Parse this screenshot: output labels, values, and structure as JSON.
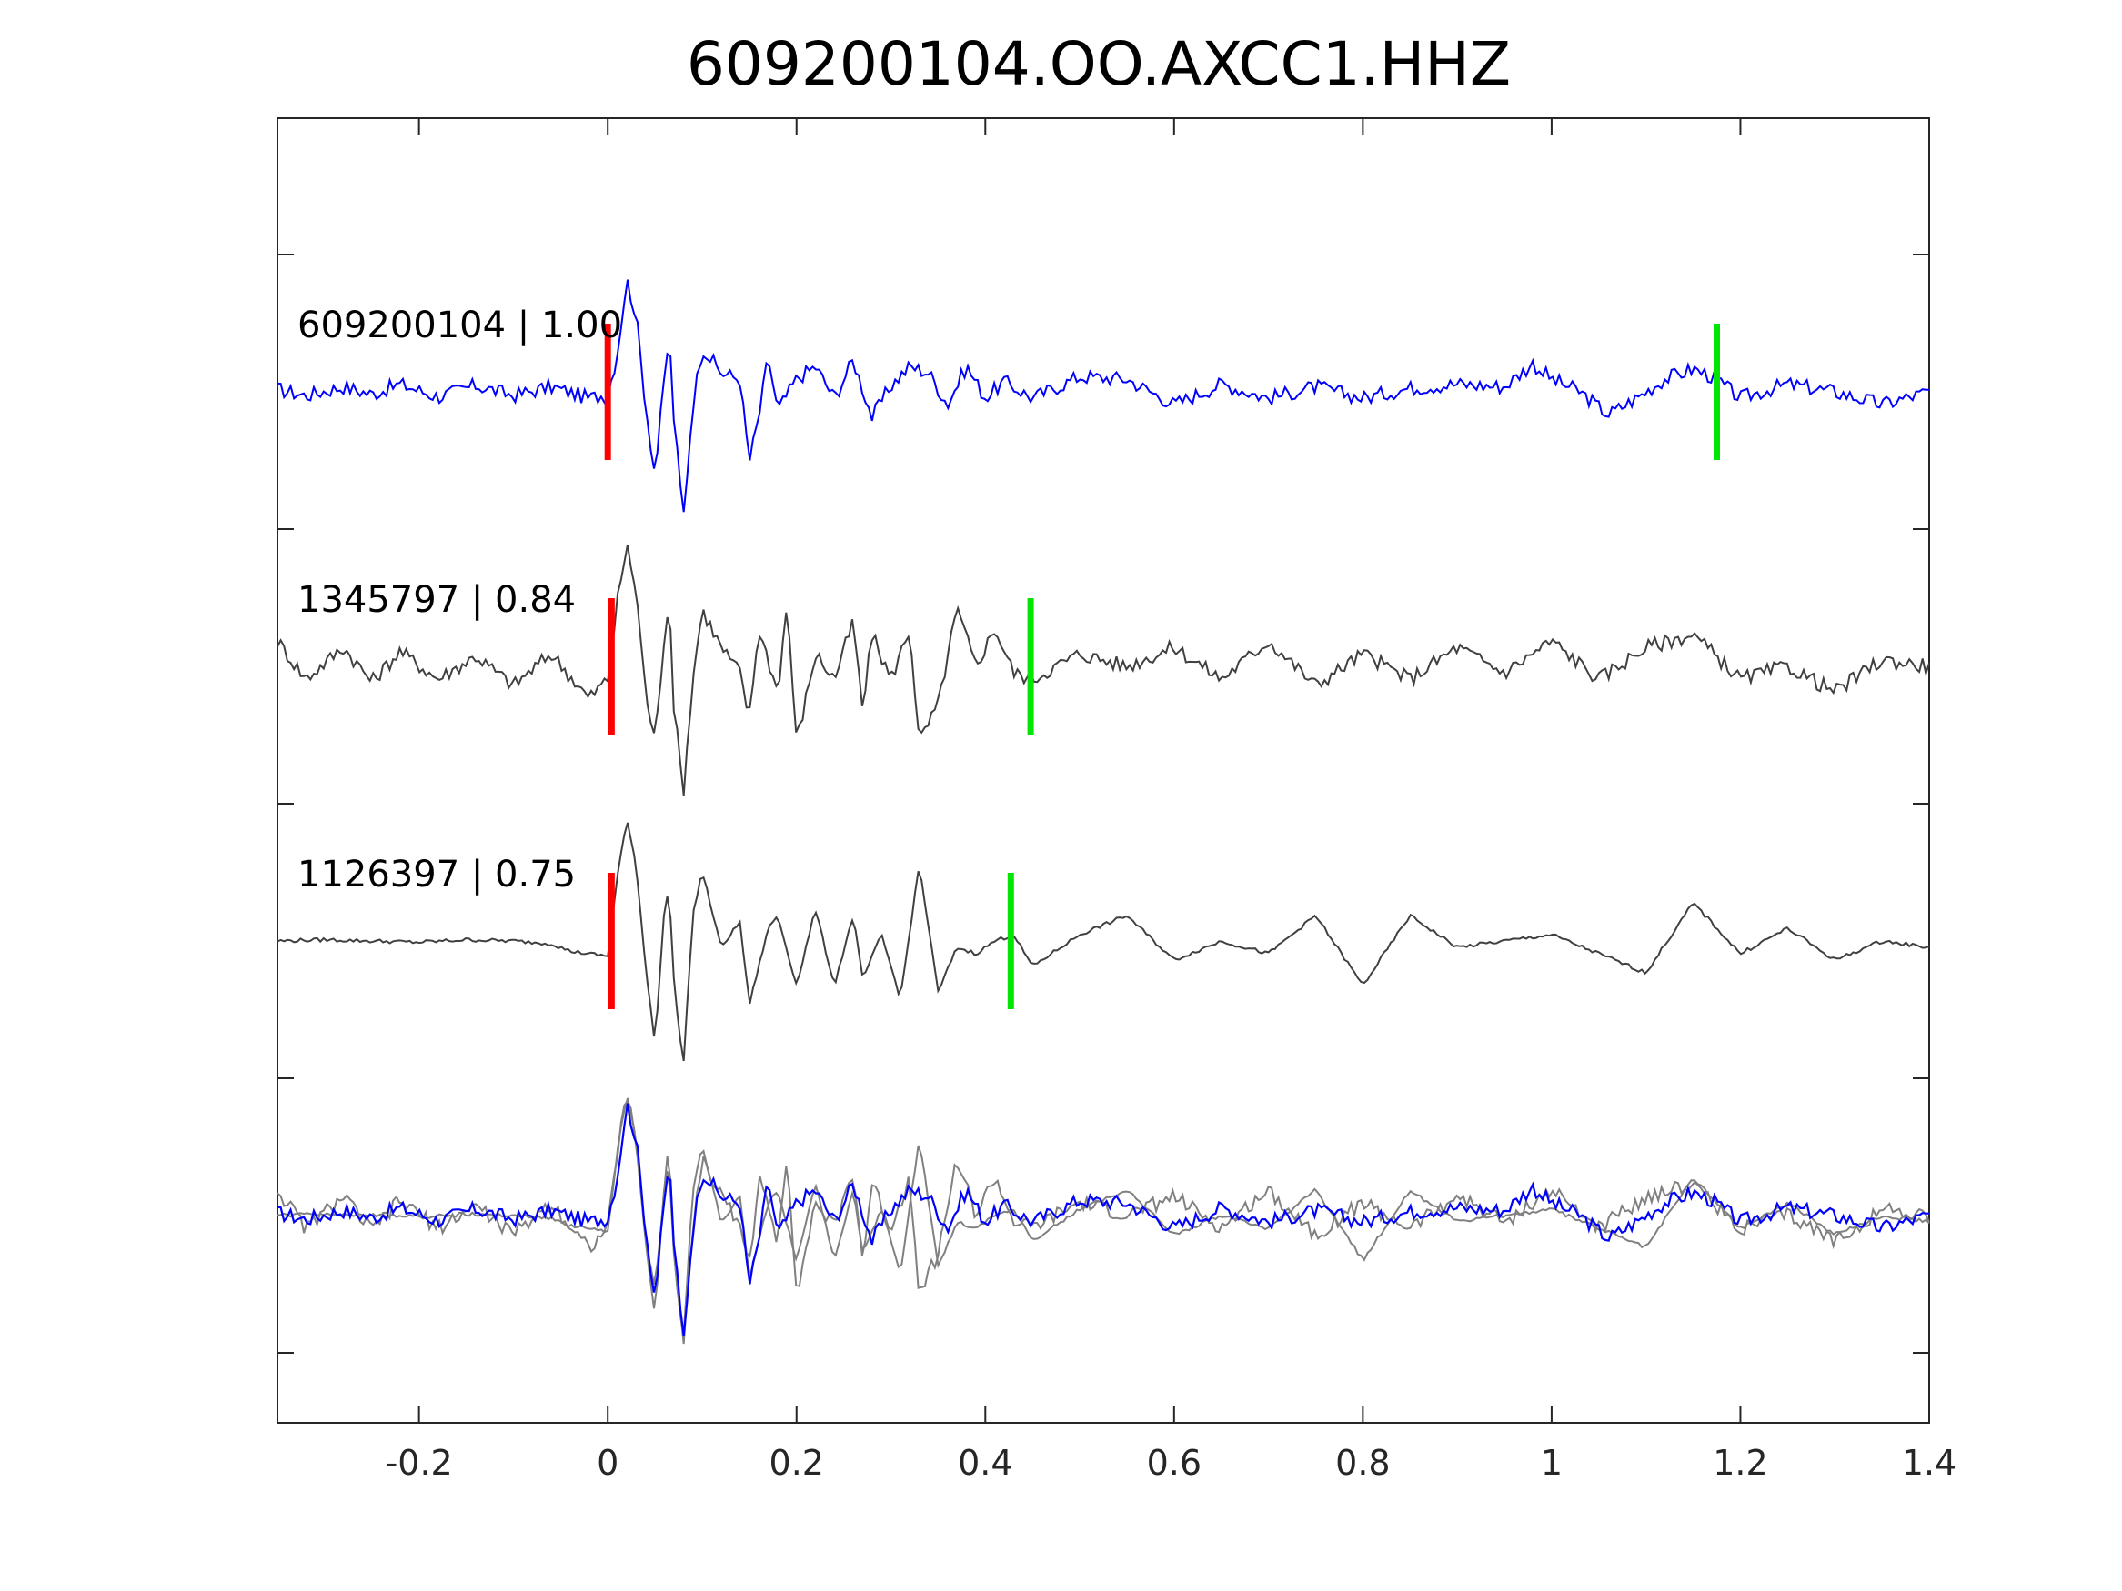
{
  "chart_data": {
    "type": "line",
    "title": "609200104.OO.AXCC1.HHZ",
    "xlabel": "",
    "ylabel": "",
    "xlim": [
      -0.35,
      1.4
    ],
    "x_ticks": [
      "-0.2",
      "0",
      "0.2",
      "0.4",
      "0.6",
      "0.8",
      "1",
      "1.2",
      "1.4"
    ],
    "x_tick_values": [
      -0.2,
      0,
      0.2,
      0.4,
      0.6,
      0.8,
      1,
      1.2,
      1.4
    ],
    "y_axis": "no tick labels",
    "grid": false,
    "colors": {
      "reference": "#0000ff",
      "correlated": "#404040",
      "overlay_gray": "#808080",
      "pick_start": "#ff0000",
      "pick_end": "#00e600"
    },
    "series": [
      {
        "name": "609200104 | 1.00",
        "event_id": "609200104",
        "correlation": "1.00",
        "color": "#0000ff",
        "pick_start": 0.0,
        "pick_end": 1.175,
        "waveform": [
          [
            -0.35,
            0.02
          ],
          [
            -0.32,
            -0.03
          ],
          [
            -0.28,
            0.04
          ],
          [
            -0.25,
            -0.02
          ],
          [
            -0.22,
            0.06
          ],
          [
            -0.18,
            -0.04
          ],
          [
            -0.14,
            0.05
          ],
          [
            -0.1,
            -0.03
          ],
          [
            -0.06,
            0.04
          ],
          [
            -0.02,
            -0.05
          ],
          [
            0.0,
            -0.02
          ],
          [
            0.01,
            0.3
          ],
          [
            0.02,
            0.88
          ],
          [
            0.03,
            0.6
          ],
          [
            0.04,
            -0.1
          ],
          [
            0.05,
            -0.65
          ],
          [
            0.06,
            0.1
          ],
          [
            0.065,
            0.45
          ],
          [
            0.07,
            -0.2
          ],
          [
            0.08,
            -1.0
          ],
          [
            0.09,
            -0.1
          ],
          [
            0.1,
            0.35
          ],
          [
            0.12,
            0.15
          ],
          [
            0.14,
            0.1
          ],
          [
            0.15,
            -0.55
          ],
          [
            0.16,
            -0.2
          ],
          [
            0.17,
            0.28
          ],
          [
            0.18,
            -0.15
          ],
          [
            0.2,
            0.1
          ],
          [
            0.22,
            0.2
          ],
          [
            0.24,
            -0.05
          ],
          [
            0.26,
            0.25
          ],
          [
            0.28,
            -0.2
          ],
          [
            0.3,
            0.05
          ],
          [
            0.32,
            0.2
          ],
          [
            0.34,
            0.15
          ],
          [
            0.36,
            -0.1
          ],
          [
            0.38,
            0.2
          ],
          [
            0.4,
            -0.05
          ],
          [
            0.42,
            0.08
          ],
          [
            0.45,
            -0.05
          ],
          [
            0.5,
            0.12
          ],
          [
            0.55,
            0.1
          ],
          [
            0.6,
            -0.1
          ],
          [
            0.65,
            0.06
          ],
          [
            0.7,
            -0.05
          ],
          [
            0.75,
            0.04
          ],
          [
            0.8,
            -0.05
          ],
          [
            0.85,
            0.03
          ],
          [
            0.9,
            0.06
          ],
          [
            0.95,
            0.04
          ],
          [
            0.98,
            0.22
          ],
          [
            1.0,
            0.1
          ],
          [
            1.03,
            0.0
          ],
          [
            1.06,
            -0.18
          ],
          [
            1.09,
            -0.05
          ],
          [
            1.12,
            0.1
          ],
          [
            1.15,
            0.18
          ],
          [
            1.17,
            0.12
          ],
          [
            1.2,
            -0.05
          ],
          [
            1.25,
            0.06
          ],
          [
            1.3,
            0.0
          ],
          [
            1.35,
            -0.1
          ],
          [
            1.4,
            0.0
          ]
        ]
      },
      {
        "name": "1345797 | 0.84",
        "event_id": "1345797",
        "correlation": "0.84",
        "color": "#404040",
        "pick_start": 0.004,
        "pick_end": 0.448,
        "waveform": [
          [
            -0.35,
            0.2
          ],
          [
            -0.32,
            -0.1
          ],
          [
            -0.28,
            0.15
          ],
          [
            -0.25,
            -0.12
          ],
          [
            -0.22,
            0.12
          ],
          [
            -0.18,
            -0.1
          ],
          [
            -0.14,
            0.08
          ],
          [
            -0.1,
            -0.15
          ],
          [
            -0.06,
            0.1
          ],
          [
            -0.02,
            -0.25
          ],
          [
            0.0,
            -0.1
          ],
          [
            0.01,
            0.5
          ],
          [
            0.02,
            0.95
          ],
          [
            0.03,
            0.6
          ],
          [
            0.04,
            -0.2
          ],
          [
            0.05,
            -0.6
          ],
          [
            0.06,
            0.25
          ],
          [
            0.065,
            0.55
          ],
          [
            0.07,
            -0.3
          ],
          [
            0.08,
            -1.0
          ],
          [
            0.09,
            -0.1
          ],
          [
            0.1,
            0.45
          ],
          [
            0.12,
            0.15
          ],
          [
            0.14,
            -0.05
          ],
          [
            0.15,
            -0.4
          ],
          [
            0.16,
            0.3
          ],
          [
            0.18,
            -0.2
          ],
          [
            0.19,
            0.5
          ],
          [
            0.2,
            -0.6
          ],
          [
            0.22,
            0.1
          ],
          [
            0.24,
            -0.1
          ],
          [
            0.26,
            0.35
          ],
          [
            0.27,
            -0.35
          ],
          [
            0.28,
            0.25
          ],
          [
            0.3,
            -0.1
          ],
          [
            0.32,
            0.3
          ],
          [
            0.33,
            -0.6
          ],
          [
            0.35,
            -0.3
          ],
          [
            0.37,
            0.45
          ],
          [
            0.39,
            0.0
          ],
          [
            0.41,
            0.3
          ],
          [
            0.43,
            -0.05
          ],
          [
            0.45,
            -0.1
          ],
          [
            0.5,
            0.1
          ],
          [
            0.55,
            0.0
          ],
          [
            0.6,
            0.15
          ],
          [
            0.65,
            -0.1
          ],
          [
            0.7,
            0.2
          ],
          [
            0.75,
            -0.15
          ],
          [
            0.8,
            0.1
          ],
          [
            0.85,
            -0.1
          ],
          [
            0.9,
            0.15
          ],
          [
            0.95,
            -0.05
          ],
          [
            1.0,
            0.2
          ],
          [
            1.05,
            -0.1
          ],
          [
            1.1,
            0.15
          ],
          [
            1.15,
            0.25
          ],
          [
            1.2,
            -0.1
          ],
          [
            1.25,
            0.0
          ],
          [
            1.3,
            -0.2
          ],
          [
            1.35,
            0.05
          ],
          [
            1.4,
            0.0
          ]
        ]
      },
      {
        "name": "1126397 | 0.75",
        "event_id": "1126397",
        "correlation": "0.75",
        "color": "#404040",
        "pick_start": 0.004,
        "pick_end": 0.427,
        "waveform": [
          [
            -0.35,
            0.0
          ],
          [
            -0.3,
            0.01
          ],
          [
            -0.25,
            0.0
          ],
          [
            -0.2,
            -0.01
          ],
          [
            -0.15,
            0.01
          ],
          [
            -0.1,
            0.0
          ],
          [
            -0.06,
            -0.02
          ],
          [
            -0.04,
            -0.08
          ],
          [
            -0.02,
            -0.1
          ],
          [
            0.0,
            -0.12
          ],
          [
            0.01,
            0.5
          ],
          [
            0.02,
            0.95
          ],
          [
            0.03,
            0.6
          ],
          [
            0.04,
            -0.2
          ],
          [
            0.05,
            -0.8
          ],
          [
            0.06,
            0.25
          ],
          [
            0.065,
            0.4
          ],
          [
            0.07,
            -0.3
          ],
          [
            0.08,
            -1.0
          ],
          [
            0.09,
            0.2
          ],
          [
            0.1,
            0.55
          ],
          [
            0.12,
            -0.05
          ],
          [
            0.14,
            0.15
          ],
          [
            0.15,
            -0.5
          ],
          [
            0.17,
            0.1
          ],
          [
            0.18,
            0.2
          ],
          [
            0.2,
            -0.35
          ],
          [
            0.22,
            0.25
          ],
          [
            0.24,
            -0.35
          ],
          [
            0.26,
            0.2
          ],
          [
            0.27,
            -0.3
          ],
          [
            0.29,
            0.05
          ],
          [
            0.31,
            -0.45
          ],
          [
            0.33,
            0.6
          ],
          [
            0.35,
            -0.4
          ],
          [
            0.37,
            -0.05
          ],
          [
            0.39,
            -0.1
          ],
          [
            0.41,
            0.0
          ],
          [
            0.43,
            0.05
          ],
          [
            0.45,
            -0.2
          ],
          [
            0.5,
            0.05
          ],
          [
            0.55,
            0.2
          ],
          [
            0.6,
            -0.15
          ],
          [
            0.65,
            0.0
          ],
          [
            0.7,
            -0.1
          ],
          [
            0.75,
            0.2
          ],
          [
            0.8,
            -0.35
          ],
          [
            0.85,
            0.2
          ],
          [
            0.9,
            -0.05
          ],
          [
            0.95,
            0.0
          ],
          [
            1.0,
            0.05
          ],
          [
            1.05,
            -0.1
          ],
          [
            1.1,
            -0.25
          ],
          [
            1.15,
            0.3
          ],
          [
            1.2,
            -0.1
          ],
          [
            1.25,
            0.1
          ],
          [
            1.3,
            -0.15
          ],
          [
            1.35,
            0.0
          ],
          [
            1.4,
            -0.05
          ]
        ]
      },
      {
        "name": "overlay",
        "description_visible": "all traces superimposed (blue reference over gray)",
        "color": "#808080"
      }
    ]
  }
}
